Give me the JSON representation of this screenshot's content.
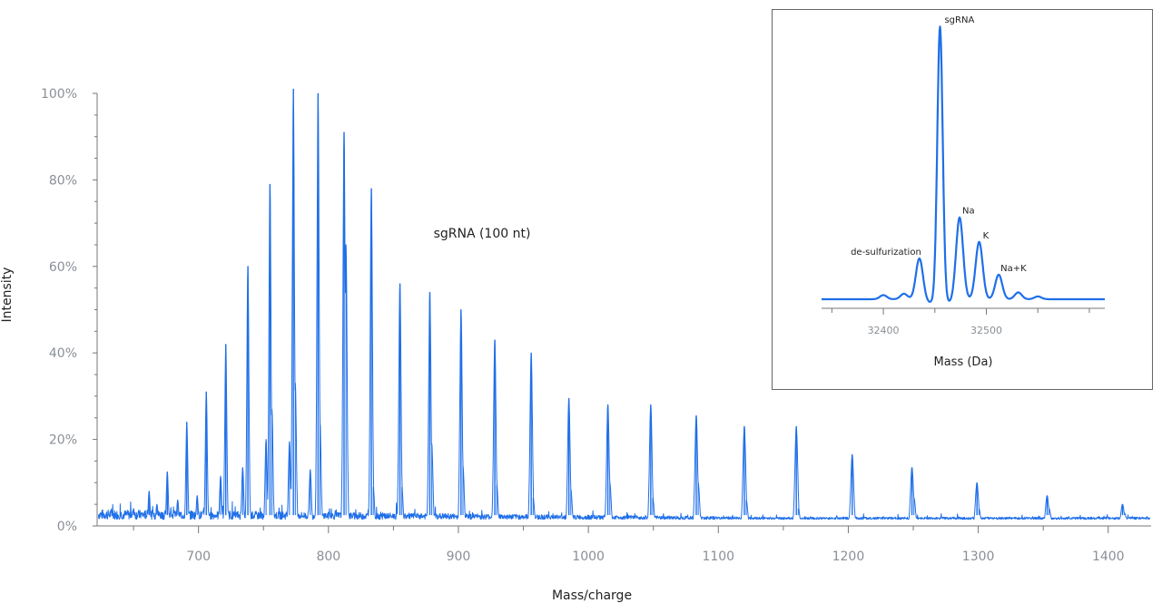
{
  "chart_data": [
    {
      "type": "line",
      "ylabel": "Intensity",
      "xlabel": "Mass/charge",
      "xlim": [
        622,
        1433
      ],
      "ylim": [
        0,
        100
      ],
      "x_ticks": [
        700,
        800,
        900,
        1000,
        1100,
        1200,
        1300,
        1400
      ],
      "y_ticks": [
        "0%",
        "20%",
        "40%",
        "60%",
        "80%",
        "100%"
      ],
      "y_tick_values": [
        0,
        20,
        40,
        60,
        80,
        100
      ],
      "annotation": "sgRNA (100 nt)",
      "color": "#1f6fe8",
      "baseline": 1.5,
      "peaks": [
        {
          "x": 662,
          "y": 8
        },
        {
          "x": 676,
          "y": 12.5
        },
        {
          "x": 691,
          "y": 24
        },
        {
          "x": 706,
          "y": 31
        },
        {
          "x": 721,
          "y": 42
        },
        {
          "x": 738,
          "y": 60
        },
        {
          "x": 755,
          "y": 79
        },
        {
          "x": 773,
          "y": 101
        },
        {
          "x": 792,
          "y": 100
        },
        {
          "x": 812,
          "y": 91
        },
        {
          "x": 833,
          "y": 78
        },
        {
          "x": 855,
          "y": 56
        },
        {
          "x": 878,
          "y": 54
        },
        {
          "x": 902,
          "y": 50
        },
        {
          "x": 928,
          "y": 43
        },
        {
          "x": 956,
          "y": 40
        },
        {
          "x": 985,
          "y": 29.5
        },
        {
          "x": 1015,
          "y": 28
        },
        {
          "x": 1048,
          "y": 28
        },
        {
          "x": 1083,
          "y": 25.5
        },
        {
          "x": 1120,
          "y": 23
        },
        {
          "x": 1160,
          "y": 23
        },
        {
          "x": 1203,
          "y": 16.5
        },
        {
          "x": 1249,
          "y": 13.5
        },
        {
          "x": 1299,
          "y": 10
        },
        {
          "x": 1353,
          "y": 7
        },
        {
          "x": 1411,
          "y": 5
        }
      ],
      "minor_peaks": [
        {
          "x": 650,
          "y": 4
        },
        {
          "x": 668,
          "y": 5
        },
        {
          "x": 684,
          "y": 6
        },
        {
          "x": 699,
          "y": 7
        },
        {
          "x": 717,
          "y": 11.5
        },
        {
          "x": 734,
          "y": 13.5
        },
        {
          "x": 752,
          "y": 20
        },
        {
          "x": 756.5,
          "y": 27
        },
        {
          "x": 770,
          "y": 19.5
        },
        {
          "x": 774.5,
          "y": 33
        },
        {
          "x": 786,
          "y": 13
        },
        {
          "x": 793.5,
          "y": 24
        },
        {
          "x": 813.5,
          "y": 65
        },
        {
          "x": 834.5,
          "y": 9
        },
        {
          "x": 856.5,
          "y": 9
        },
        {
          "x": 879.5,
          "y": 19
        },
        {
          "x": 903.5,
          "y": 14
        },
        {
          "x": 929.5,
          "y": 9.5
        },
        {
          "x": 957.5,
          "y": 6.5
        },
        {
          "x": 986.5,
          "y": 8.5
        },
        {
          "x": 1016.5,
          "y": 10
        },
        {
          "x": 1049.5,
          "y": 6.5
        },
        {
          "x": 1084.5,
          "y": 10
        },
        {
          "x": 1121.5,
          "y": 6
        },
        {
          "x": 1161.5,
          "y": 4
        },
        {
          "x": 1250.5,
          "y": 6.5
        },
        {
          "x": 1300.5,
          "y": 4
        },
        {
          "x": 1354.5,
          "y": 4
        },
        {
          "x": 1412.5,
          "y": 3
        }
      ]
    },
    {
      "type": "line",
      "xlabel": "Mass (Da)",
      "xlim": [
        32340,
        32615
      ],
      "ylim": [
        0,
        100
      ],
      "x_ticks": [
        32400,
        32500
      ],
      "x_minor_ticks": [
        32350,
        32450,
        32550,
        32600
      ],
      "color": "#1f6fe8",
      "baseline": 2,
      "peaks": [
        {
          "x": 32400,
          "y": 1.5,
          "label": ""
        },
        {
          "x": 32420,
          "y": 2,
          "label": ""
        },
        {
          "x": 32435,
          "y": 15,
          "label": "de-sulfurization"
        },
        {
          "x": 32455,
          "y": 100,
          "label": "sgRNA"
        },
        {
          "x": 32474,
          "y": 30,
          "label": "Na"
        },
        {
          "x": 32493,
          "y": 21,
          "label": "K"
        },
        {
          "x": 32512,
          "y": 9,
          "label": "Na+K"
        },
        {
          "x": 32531,
          "y": 2.5,
          "label": ""
        },
        {
          "x": 32550,
          "y": 1,
          "label": ""
        }
      ]
    }
  ]
}
